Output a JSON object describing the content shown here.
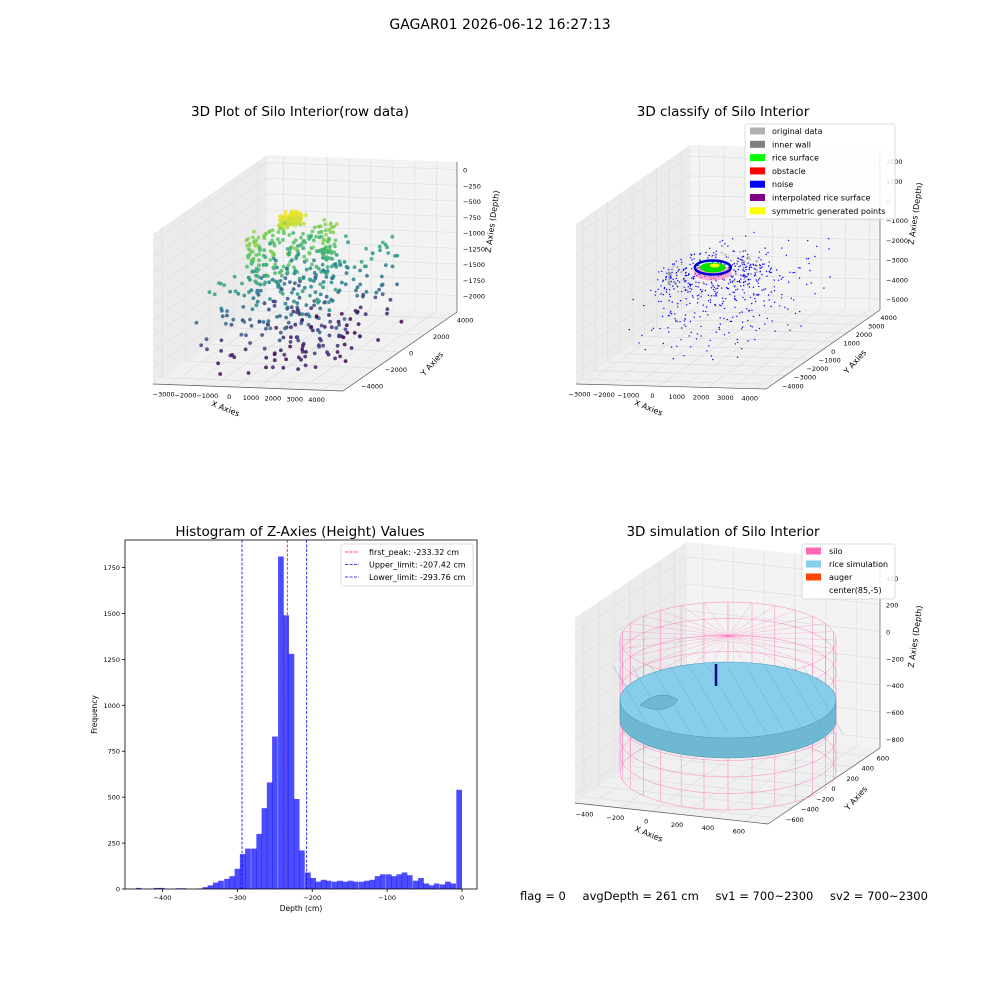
{
  "figure": {
    "title": "GAGAR01 2026-06-12 16:27:13",
    "status": {
      "flag": "flag = 0",
      "avg_depth": "avgDepth = 261 cm",
      "sv1": "sv1 = 700~2300",
      "sv2": "sv2 = 700~2300"
    }
  },
  "chart_data": [
    {
      "type": "scatter3d",
      "title": "3D Plot of Silo Interior(row data)",
      "xlabel": "X Axies",
      "ylabel": "Y Axies",
      "zlabel": "Z Axies (Depth)",
      "x_ticks": [
        "−3000",
        "−2000",
        "−1000",
        "0",
        "1000",
        "2000",
        "3000",
        "4000"
      ],
      "y_ticks": [
        "−4000",
        "−2000",
        "0",
        "2000",
        "4000"
      ],
      "z_ticks": [
        "0",
        "−250",
        "−500",
        "−750",
        "−1000",
        "−1250",
        "−1500",
        "−1750",
        "−2000"
      ],
      "xlim": [
        -3500,
        4500
      ],
      "ylim": [
        -4500,
        4500
      ],
      "zlim": [
        -2200,
        100
      ],
      "colormap": "viridis",
      "point_count": 650
    },
    {
      "type": "scatter3d",
      "title": "3D classify of Silo Interior",
      "xlabel": "X Axies",
      "ylabel": "Y Axies",
      "zlabel": "Z Axies (Depth)",
      "x_ticks": [
        "−3000",
        "−2000",
        "−1000",
        "0",
        "1000",
        "2000",
        "3000",
        "4000"
      ],
      "y_ticks": [
        "−4000",
        "−3000",
        "−2000",
        "−1000",
        "0",
        "1000",
        "2000",
        "3000",
        "4000"
      ],
      "z_ticks": [
        "2000",
        "1000",
        "0",
        "−1000",
        "−2000",
        "−3000",
        "−4000",
        "−5000"
      ],
      "xlim": [
        -3500,
        4500
      ],
      "ylim": [
        -4500,
        4500
      ],
      "zlim": [
        -5200,
        2300
      ],
      "legend_position": "top-right",
      "legend": [
        {
          "label": "original data",
          "color": "#b0b0b0"
        },
        {
          "label": "inner wall",
          "color": "#808080"
        },
        {
          "label": "rice surface",
          "color": "#00ff00"
        },
        {
          "label": "obstacle",
          "color": "#ff0000"
        },
        {
          "label": "noise",
          "color": "#0000ff"
        },
        {
          "label": "interpolated rice surface",
          "color": "#800080"
        },
        {
          "label": "symmetric generated points",
          "color": "#ffff00"
        }
      ]
    },
    {
      "type": "bar",
      "title": "Histogram of Z-Axies (Height) Values",
      "xlabel": "Depth (cm)",
      "ylabel": "Frequency",
      "xlim": [
        -450,
        20
      ],
      "ylim": [
        0,
        1900
      ],
      "x_ticks": [
        -400,
        -300,
        -200,
        -100,
        0
      ],
      "y_ticks": [
        0,
        250,
        500,
        750,
        1000,
        1250,
        1500,
        1750
      ],
      "bar_color": "#0000ff",
      "bin_width": 7.2,
      "bins": [
        {
          "x": -432,
          "y": 6
        },
        {
          "x": -408,
          "y": 6
        },
        {
          "x": -401,
          "y": 6
        },
        {
          "x": -379,
          "y": 4
        },
        {
          "x": -372,
          "y": 4
        },
        {
          "x": -350,
          "y": 3
        },
        {
          "x": -343,
          "y": 10
        },
        {
          "x": -336,
          "y": 20
        },
        {
          "x": -329,
          "y": 35
        },
        {
          "x": -322,
          "y": 45
        },
        {
          "x": -314,
          "y": 55
        },
        {
          "x": -307,
          "y": 70
        },
        {
          "x": -300,
          "y": 110
        },
        {
          "x": -293,
          "y": 190
        },
        {
          "x": -286,
          "y": 220
        },
        {
          "x": -278,
          "y": 220
        },
        {
          "x": -271,
          "y": 300
        },
        {
          "x": -264,
          "y": 440
        },
        {
          "x": -257,
          "y": 580
        },
        {
          "x": -250,
          "y": 830
        },
        {
          "x": -242,
          "y": 1810
        },
        {
          "x": -235,
          "y": 1490
        },
        {
          "x": -228,
          "y": 1280
        },
        {
          "x": -221,
          "y": 490
        },
        {
          "x": -214,
          "y": 210
        },
        {
          "x": -206,
          "y": 90
        },
        {
          "x": -199,
          "y": 60
        },
        {
          "x": -192,
          "y": 40
        },
        {
          "x": -185,
          "y": 50
        },
        {
          "x": -178,
          "y": 45
        },
        {
          "x": -170,
          "y": 40
        },
        {
          "x": -163,
          "y": 45
        },
        {
          "x": -156,
          "y": 40
        },
        {
          "x": -149,
          "y": 45
        },
        {
          "x": -142,
          "y": 40
        },
        {
          "x": -134,
          "y": 40
        },
        {
          "x": -127,
          "y": 45
        },
        {
          "x": -120,
          "y": 50
        },
        {
          "x": -113,
          "y": 70
        },
        {
          "x": -106,
          "y": 80
        },
        {
          "x": -98,
          "y": 80
        },
        {
          "x": -91,
          "y": 70
        },
        {
          "x": -84,
          "y": 80
        },
        {
          "x": -77,
          "y": 90
        },
        {
          "x": -70,
          "y": 75
        },
        {
          "x": -62,
          "y": 45
        },
        {
          "x": -55,
          "y": 60
        },
        {
          "x": -48,
          "y": 30
        },
        {
          "x": -41,
          "y": 20
        },
        {
          "x": -34,
          "y": 30
        },
        {
          "x": -26,
          "y": 25
        },
        {
          "x": -19,
          "y": 40
        },
        {
          "x": -12,
          "y": 30
        },
        {
          "x": -4,
          "y": 540
        }
      ],
      "lines": [
        {
          "label": "first_peak: -233.32 cm",
          "x": -233.32,
          "color": "#ff0000"
        },
        {
          "label": "Upper_limit: -207.42 cm",
          "x": -207.42,
          "color": "#0000ff"
        },
        {
          "label": "Lower_limit: -293.76 cm",
          "x": -293.76,
          "color": "#0000ff"
        }
      ],
      "legend_position": "top-right"
    },
    {
      "type": "surface3d",
      "title": "3D simulation of Silo Interior",
      "xlabel": "X Axies",
      "ylabel": "Y Axies",
      "zlabel": "Z Axies (Depth)",
      "x_ticks": [
        "−400",
        "−200",
        "0",
        "200",
        "400",
        "600"
      ],
      "y_ticks": [
        "−600",
        "−400",
        "−200",
        "0",
        "200",
        "400",
        "600"
      ],
      "z_ticks": [
        "400",
        "200",
        "0",
        "−200",
        "−400",
        "−600",
        "−800"
      ],
      "xlim": [
        -550,
        750
      ],
      "ylim": [
        -700,
        700
      ],
      "zlim": [
        -900,
        450
      ],
      "legend_position": "top-right",
      "legend": [
        {
          "label": "silo",
          "color": "#ff69b4"
        },
        {
          "label": "rice simulation",
          "color": "#87ceeb"
        },
        {
          "label": "auger",
          "color": "#ff4500"
        },
        {
          "label": "center(85,-5)",
          "color": "#ffffff"
        }
      ]
    }
  ]
}
